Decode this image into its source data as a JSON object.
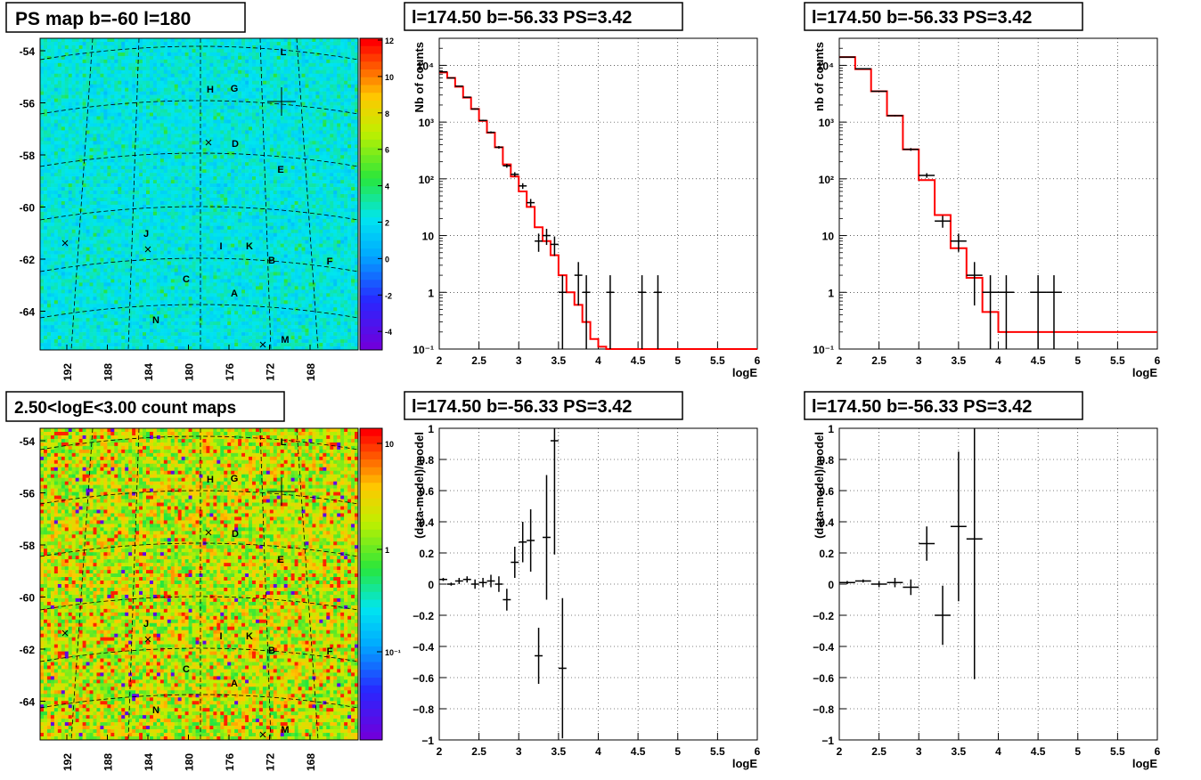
{
  "panels": {
    "map1": {
      "title": "PS map b=-60 l=180",
      "yticks": [
        "-54",
        "-56",
        "-58",
        "-60",
        "-62",
        "-64"
      ],
      "xticks": [
        "192",
        "188",
        "184",
        "180",
        "176",
        "172",
        "168"
      ],
      "colorbar": [
        "12",
        "10",
        "8",
        "6",
        "4",
        "2",
        "0",
        "-2",
        "-4"
      ],
      "markers": [
        "L",
        "H",
        "G",
        "D",
        "E",
        "J",
        "I",
        "K",
        "B",
        "F",
        "C",
        "A",
        "N",
        "M"
      ]
    },
    "map2": {
      "title": "2.50<logE<3.00 count maps",
      "yticks": [
        "-54",
        "-56",
        "-58",
        "-60",
        "-62",
        "-64"
      ],
      "xticks": [
        "192",
        "188",
        "184",
        "180",
        "176",
        "172",
        "168"
      ],
      "colorbar": [
        "10",
        "1",
        "10⁻¹"
      ],
      "markers": [
        "L",
        "H",
        "G",
        "D",
        "E",
        "J",
        "I",
        "K",
        "B",
        "F",
        "C",
        "A",
        "N",
        "M"
      ]
    },
    "spec1": {
      "title": "l=174.50 b=-56.33 PS=3.42",
      "ylabel": "Nb of counts",
      "xlabel": "logE"
    },
    "spec2": {
      "title": "l=174.50 b=-56.33 PS=3.42",
      "ylabel": "nb of counts",
      "xlabel": "logE"
    },
    "res1": {
      "title": "l=174.50 b=-56.33 PS=3.42",
      "ylabel": "(data-model)/model",
      "xlabel": "logE"
    },
    "res2": {
      "title": "l=174.50 b=-56.33 PS=3.42",
      "ylabel": "(data-model)/model",
      "xlabel": "logE"
    },
    "spec_xticks": [
      "2",
      "2.5",
      "3",
      "3.5",
      "4",
      "4.5",
      "5",
      "5.5",
      "6"
    ],
    "spec_yticks": [
      "10⁻¹",
      "1",
      "10",
      "10²",
      "10³",
      "10⁴"
    ],
    "res_yticks": [
      "−1",
      "−0.8",
      "−0.6",
      "−0.4",
      "−0.2",
      "0",
      "0.2",
      "0.4",
      "0.6",
      "0.8",
      "1"
    ]
  },
  "colors": {
    "model": "#ff0000",
    "data": "#000000"
  },
  "chart_data": [
    {
      "type": "heatmap",
      "title": "PS map b=-60 l=180",
      "xlabel": "",
      "ylabel": "",
      "x_ticks": [
        192,
        188,
        184,
        180,
        176,
        172,
        168
      ],
      "y_ticks": [
        -54,
        -56,
        -58,
        -60,
        -62,
        -64
      ],
      "color_range": [
        -5,
        12
      ],
      "sources": [
        "L",
        "H",
        "G",
        "D",
        "E",
        "J",
        "I",
        "K",
        "B",
        "F",
        "C",
        "A",
        "N",
        "M"
      ]
    },
    {
      "type": "heatmap",
      "title": "2.50<logE<3.00 count maps",
      "xlabel": "",
      "ylabel": "",
      "x_ticks": [
        192,
        188,
        184,
        180,
        176,
        172,
        168
      ],
      "y_ticks": [
        -54,
        -56,
        -58,
        -60,
        -62,
        -64
      ],
      "color_scale": "log",
      "color_range": [
        0.05,
        15
      ],
      "sources": [
        "L",
        "H",
        "G",
        "D",
        "E",
        "J",
        "I",
        "K",
        "B",
        "F",
        "C",
        "A",
        "N",
        "M"
      ]
    },
    {
      "type": "line",
      "title": "l=174.50 b=-56.33 PS=3.42",
      "xlabel": "logE",
      "ylabel": "Nb of counts",
      "xlim": [
        2,
        6
      ],
      "ylim": [
        0.1,
        30000
      ],
      "yscale": "log",
      "grid": true,
      "series": [
        {
          "kind": "histogram",
          "edges": [
            2,
            2.1,
            2.2,
            2.3,
            2.4,
            2.5,
            2.6,
            2.7,
            2.8,
            2.9,
            3.0,
            3.1,
            3.2,
            3.3,
            3.4,
            3.5,
            3.6,
            3.7,
            3.8,
            3.9,
            4.0,
            4.1,
            6.0
          ],
          "values": [
            7500,
            6000,
            4200,
            2700,
            1700,
            1050,
            650,
            360,
            180,
            110,
            60,
            32,
            14,
            8,
            4.5,
            2,
            1,
            0.6,
            0.3,
            0.15,
            0.11,
            0.1
          ]
        },
        {
          "kind": "points",
          "x": [
            2.05,
            2.15,
            2.25,
            2.35,
            2.45,
            2.55,
            2.65,
            2.75,
            2.85,
            2.95,
            3.05,
            3.15,
            3.25,
            3.35,
            3.45,
            3.55,
            3.75,
            3.85,
            4.15,
            4.55,
            4.75
          ],
          "y": [
            7700,
            6000,
            4300,
            2750,
            1700,
            1070,
            660,
            360,
            170,
            120,
            75,
            38,
            8,
            10,
            7,
            1,
            2,
            1,
            1,
            1,
            1
          ]
        }
      ]
    },
    {
      "type": "line",
      "title": "l=174.50 b=-56.33 PS=3.42",
      "xlabel": "logE",
      "ylabel": "nb of counts",
      "xlim": [
        2,
        6
      ],
      "ylim": [
        0.1,
        30000
      ],
      "yscale": "log",
      "grid": true,
      "series": [
        {
          "kind": "histogram",
          "edges": [
            2,
            2.2,
            2.4,
            2.6,
            2.8,
            3.0,
            3.2,
            3.4,
            3.6,
            3.8,
            4.0,
            6.0
          ],
          "values": [
            14000,
            8600,
            3500,
            1300,
            330,
            95,
            23,
            6,
            1.8,
            0.45,
            0.2
          ]
        },
        {
          "kind": "points",
          "x": [
            2.1,
            2.3,
            2.5,
            2.7,
            2.9,
            3.1,
            3.3,
            3.5,
            3.7,
            3.9,
            4.1,
            4.5,
            4.7
          ],
          "y": [
            14000,
            8700,
            3500,
            1300,
            330,
            115,
            18,
            8,
            2,
            1,
            1,
            1,
            1
          ]
        }
      ]
    },
    {
      "type": "scatter",
      "title": "l=174.50 b=-56.33 PS=3.42",
      "xlabel": "logE",
      "ylabel": "(data-model)/model",
      "xlim": [
        2,
        6
      ],
      "ylim": [
        -1,
        1
      ],
      "grid": true,
      "x": [
        2.05,
        2.15,
        2.25,
        2.35,
        2.45,
        2.55,
        2.65,
        2.75,
        2.85,
        2.95,
        3.05,
        3.15,
        3.25,
        3.35,
        3.45,
        3.55
      ],
      "y": [
        0.03,
        0.0,
        0.02,
        0.03,
        0.0,
        0.01,
        0.02,
        0.0,
        -0.1,
        0.14,
        0.27,
        0.28,
        -0.46,
        0.3,
        0.92,
        -0.54
      ],
      "y_err": [
        0.01,
        0.01,
        0.02,
        0.02,
        0.03,
        0.03,
        0.04,
        0.05,
        0.07,
        0.1,
        0.13,
        0.2,
        0.18,
        0.4,
        0.73,
        0.45
      ]
    },
    {
      "type": "scatter",
      "title": "l=174.50 b=-56.33 PS=3.42",
      "xlabel": "logE",
      "ylabel": "(data-model)/model",
      "xlim": [
        2,
        6
      ],
      "ylim": [
        -1,
        1
      ],
      "grid": true,
      "x": [
        2.1,
        2.3,
        2.5,
        2.7,
        2.9,
        3.1,
        3.3,
        3.5,
        3.7
      ],
      "y": [
        0.01,
        0.02,
        0.0,
        0.01,
        -0.02,
        0.26,
        -0.2,
        0.37,
        0.29
      ],
      "y_err": [
        0.01,
        0.01,
        0.02,
        0.03,
        0.05,
        0.11,
        0.19,
        0.48,
        0.9
      ]
    }
  ]
}
